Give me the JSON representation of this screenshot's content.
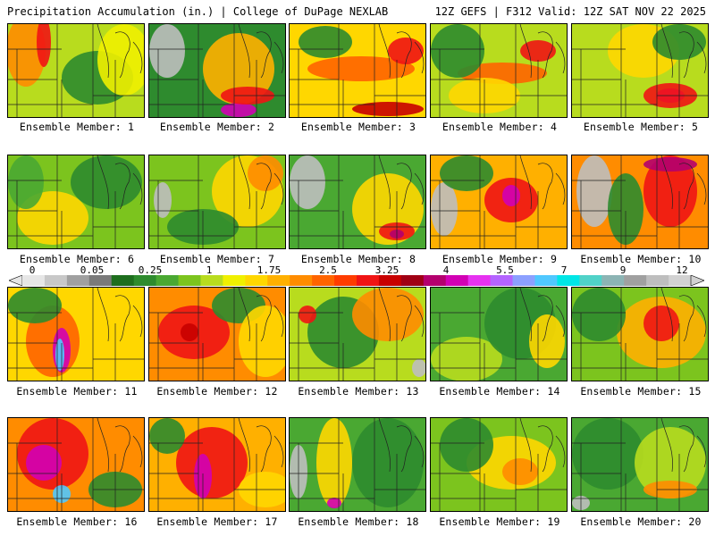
{
  "header": {
    "title": "Precipitation Accumulation (in.) | College of DuPage NEXLAB",
    "run_info": "12Z GEFS | F312 Valid: 12Z SAT NOV 22 2025"
  },
  "legend": {
    "tick_labels": [
      "0",
      "0.05",
      "0.25",
      "1",
      "1.75",
      "2.5",
      "3.25",
      "4",
      "5.5",
      "7",
      "9",
      "12"
    ],
    "colors": [
      "#e6e6e6",
      "#c8c8c8",
      "#a0a0a0",
      "#7a7a7a",
      "#1e6e1e",
      "#2e8b2e",
      "#4aa832",
      "#7cc41e",
      "#b8dc1e",
      "#f0f000",
      "#ffd700",
      "#ffb000",
      "#ff8c00",
      "#ff6400",
      "#ff3c00",
      "#f01414",
      "#c80000",
      "#a00014",
      "#b4006e",
      "#d200b4",
      "#e632f0",
      "#b464ff",
      "#8ca0ff",
      "#50c8ff",
      "#00e6e6",
      "#50d2c8",
      "#8cb4b4",
      "#a0a0a0",
      "#bebebe",
      "#d2d2d2"
    ]
  },
  "members": [
    {
      "label": "Ensemble Member: 1"
    },
    {
      "label": "Ensemble Member: 2"
    },
    {
      "label": "Ensemble Member: 3"
    },
    {
      "label": "Ensemble Member: 4"
    },
    {
      "label": "Ensemble Member: 5"
    },
    {
      "label": "Ensemble Member: 6"
    },
    {
      "label": "Ensemble Member: 7"
    },
    {
      "label": "Ensemble Member: 8"
    },
    {
      "label": "Ensemble Member: 9"
    },
    {
      "label": "Ensemble Member: 10"
    },
    {
      "label": "Ensemble Member: 11"
    },
    {
      "label": "Ensemble Member: 12"
    },
    {
      "label": "Ensemble Member: 13"
    },
    {
      "label": "Ensemble Member: 14"
    },
    {
      "label": "Ensemble Member: 15"
    },
    {
      "label": "Ensemble Member: 16"
    },
    {
      "label": "Ensemble Member: 17"
    },
    {
      "label": "Ensemble Member: 18"
    },
    {
      "label": "Ensemble Member: 19"
    },
    {
      "label": "Ensemble Member: 20"
    }
  ]
}
